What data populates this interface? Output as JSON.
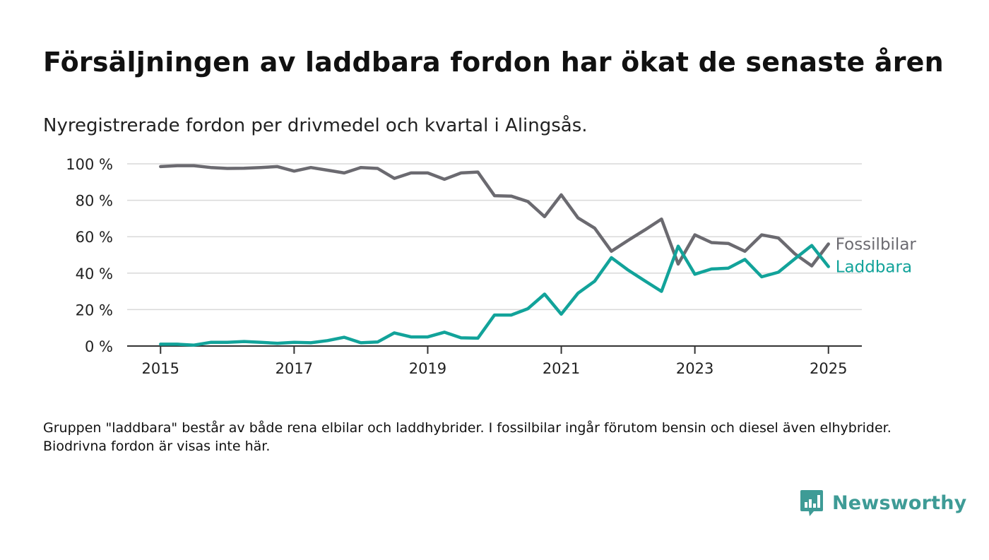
{
  "title": "Försäljningen av laddbara fordon har ökat de senaste åren",
  "subtitle": "Nyregistrerade fordon per drivmedel och kvartal i Alingsås.",
  "note": "Gruppen \"laddbara\" består av både rena elbilar och laddhybrider. I fossilbilar ingår förutom bensin och diesel även elhybrider. Biodrivna fordon är visas inte här.",
  "brand": {
    "name": "Newsworthy",
    "icon": "newsworthy-logo-icon",
    "color": "#3e9b96"
  },
  "chart_data": {
    "type": "line",
    "x_unit": "year (quarterly)",
    "x_start": 2015,
    "x_step": 0.25,
    "xlim": [
      2014.5,
      2025.5
    ],
    "ylim": [
      0,
      100
    ],
    "x_ticks": [
      2015,
      2017,
      2019,
      2021,
      2023,
      2025
    ],
    "x_tick_labels": [
      "2015",
      "2017",
      "2019",
      "2021",
      "2023",
      "2025"
    ],
    "y_ticks": [
      0,
      20,
      40,
      60,
      80,
      100
    ],
    "y_tick_labels": [
      "0 %",
      "20 %",
      "40 %",
      "60 %",
      "80 %",
      "100 %"
    ],
    "grid": "horizontal",
    "legend": "line-end labels",
    "series": [
      {
        "name": "Fossilbilar",
        "color": "#6b6a70",
        "values": [
          98.5,
          99,
          99,
          98,
          97.5,
          97.6,
          98,
          98.5,
          96,
          98,
          96.5,
          95,
          98,
          97.5,
          92,
          95,
          95,
          91.5,
          95,
          95.5,
          82.5,
          82.3,
          79.3,
          71,
          83,
          70.3,
          64.7,
          52,
          58,
          63.7,
          69.7,
          45,
          61,
          56.8,
          56.3,
          52,
          61,
          59.3,
          50.5,
          44,
          56
        ]
      },
      {
        "name": "Laddbara",
        "color": "#12a39a",
        "values": [
          1,
          1,
          0.5,
          2,
          2,
          2.5,
          2,
          1.5,
          2,
          1.8,
          3,
          4.8,
          1.8,
          2.2,
          7.2,
          5,
          5,
          7.6,
          4.5,
          4.3,
          17,
          17,
          20.5,
          28.5,
          17.5,
          29,
          35.6,
          48.5,
          41.7,
          35.8,
          30,
          54.8,
          39.4,
          42.3,
          42.7,
          47.5,
          38,
          40.5,
          48,
          55.2,
          43.6
        ]
      }
    ]
  }
}
